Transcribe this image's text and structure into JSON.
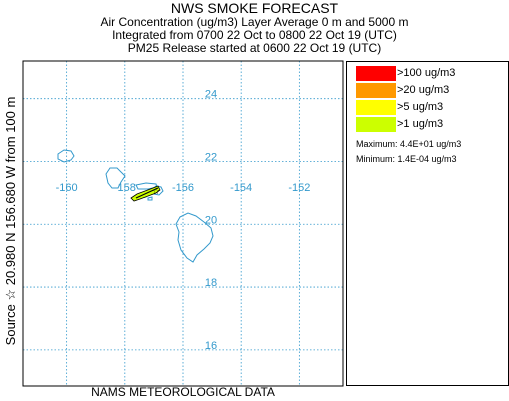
{
  "header": {
    "title": "NWS SMOKE FORECAST",
    "line1": "Air Concentration (ug/m3) Layer Average    0 m and  5000 m",
    "line2": "Integrated from 0700 22 Oct to 0800 22 Oct 19 (UTC)",
    "line3": "PM25 Release started at 0600 22 Oct 19 (UTC)"
  },
  "side_label": "Source ☆  20.980  N 156.680  W       from  100 m",
  "footer": "NAMS METEOROLOGICAL DATA",
  "map": {
    "lon_range": [
      -161.5,
      -150.5
    ],
    "lat_range": [
      14.85,
      25.2
    ],
    "longitude_labels": [
      "-160",
      "-158",
      "-156",
      "-154",
      "-152"
    ],
    "latitude_labels": [
      "24",
      "22",
      "20",
      "18",
      "16"
    ],
    "gridline_color": "#3399cc",
    "label_color": "#3399cc",
    "coast_color": "#3399cc",
    "plume_color": "#ccff00"
  },
  "legend": {
    "items": [
      {
        "label": ">100 ug/m3",
        "color": "#ff0000"
      },
      {
        "label": ">20 ug/m3",
        "color": "#ff9900"
      },
      {
        "label": ">5 ug/m3",
        "color": "#ffff00"
      },
      {
        "label": ">1 ug/m3",
        "color": "#ccff00"
      }
    ],
    "maximum": "Maximum: 4.4E+01 ug/m3",
    "minimum": "Minimum: 1.4E-04 ug/m3"
  }
}
